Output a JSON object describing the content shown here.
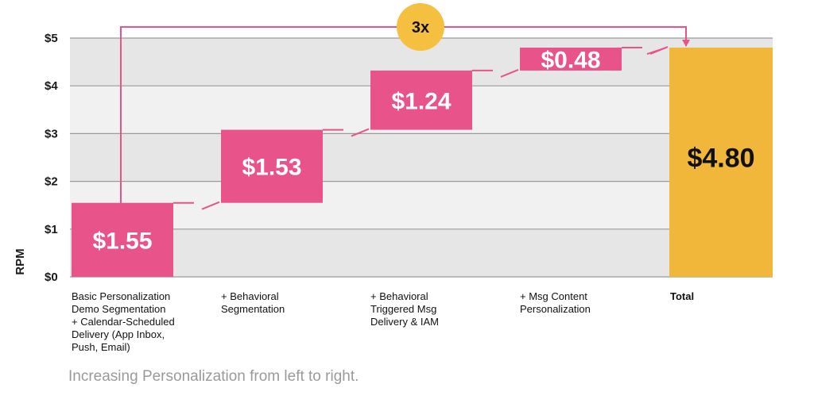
{
  "chart_data": {
    "type": "waterfall",
    "ylabel": "RPM",
    "ylim": [
      0,
      5
    ],
    "yticks": [
      "$0",
      "$1",
      "$2",
      "$3",
      "$4",
      "$5"
    ],
    "categories": [
      "Basic Personalization Demo Segmentation + Calendar-Scheduled Delivery (App Inbox, Push, Email)",
      "+ Behavioral Segmentation",
      "+ Behavioral Triggered Msg Delivery & IAM",
      "+ Msg Content Personalization",
      "Total"
    ],
    "category_lines": [
      [
        "Basic Personalization",
        "Demo Segmentation",
        "+ Calendar-Scheduled",
        "Delivery (App Inbox,",
        "Push, Email)"
      ],
      [
        "+ Behavioral",
        "Segmentation"
      ],
      [
        "+ Behavioral",
        "Triggered Msg",
        "Delivery & IAM"
      ],
      [
        "+ Msg Content",
        "Personalization"
      ],
      [
        "Total"
      ]
    ],
    "values": [
      1.55,
      1.53,
      1.24,
      0.48,
      4.8
    ],
    "value_labels": [
      "$1.55",
      "$1.53",
      "$1.24",
      "$0.48",
      "$4.80"
    ],
    "increment_color": "#e8538a",
    "total_color": "#f0b73a",
    "multiplier_label": "3x",
    "multiplier_color": "#f5c040",
    "grid": true,
    "caption": "Increasing Personalization from left to right."
  }
}
